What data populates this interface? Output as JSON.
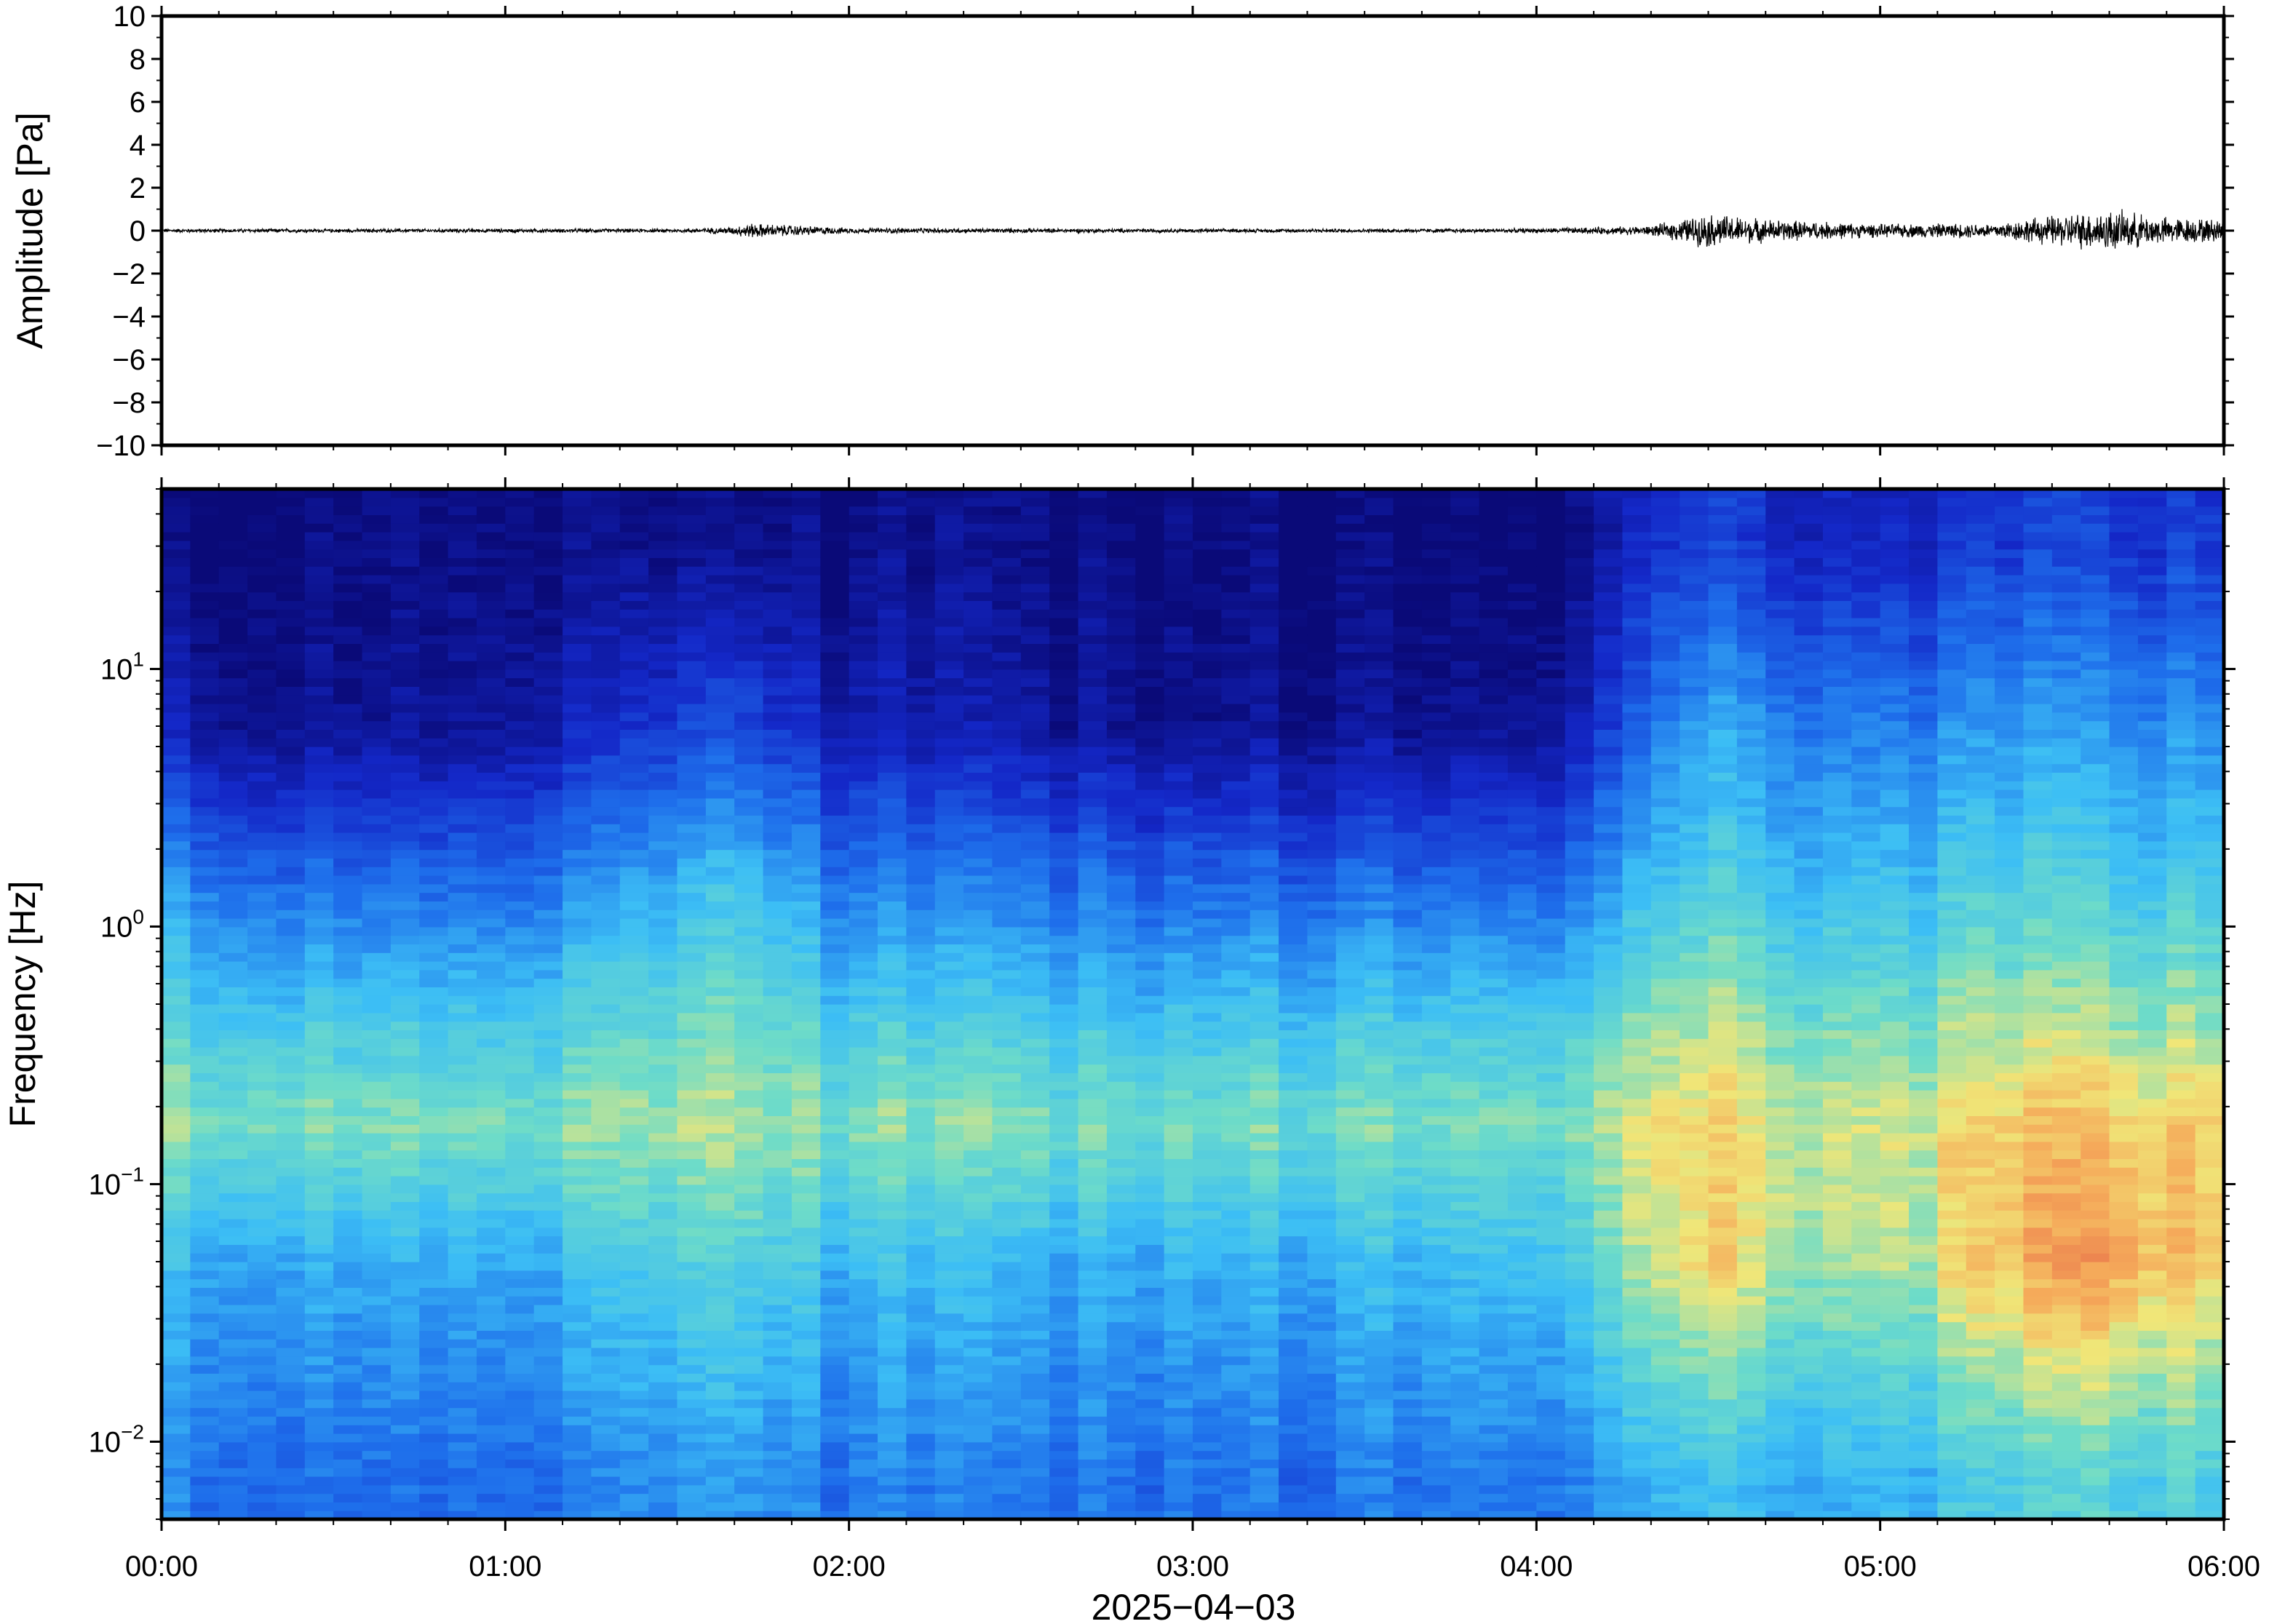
{
  "chart_data": [
    {
      "type": "line",
      "panel": "waveform",
      "title": "",
      "xlabel": "",
      "ylabel": "Amplitude [Pa]",
      "ylim": [
        -10,
        10
      ],
      "y_ticks": [
        {
          "value": 10,
          "label": "10"
        },
        {
          "value": 8,
          "label": "8"
        },
        {
          "value": 6,
          "label": "6"
        },
        {
          "value": 4,
          "label": "4"
        },
        {
          "value": 2,
          "label": "2"
        },
        {
          "value": 0,
          "label": "0"
        },
        {
          "value": -2,
          "label": "−2"
        },
        {
          "value": -4,
          "label": "−4"
        },
        {
          "value": -6,
          "label": "−6"
        },
        {
          "value": -8,
          "label": "−8"
        },
        {
          "value": -10,
          "label": "−10"
        }
      ],
      "xlim": [
        "2025-04-03T00:00",
        "2025-04-03T06:00"
      ],
      "grid": false,
      "series": [
        {
          "x": [
            "00:00",
            "00:30",
            "01:00",
            "01:30",
            "01:40",
            "01:42",
            "02:00",
            "02:30",
            "03:00",
            "03:30",
            "04:00",
            "04:20",
            "04:30",
            "04:40",
            "05:00",
            "05:20",
            "05:30",
            "05:40",
            "05:50",
            "06:00"
          ],
          "y_envelope": [
            0.1,
            0.1,
            0.1,
            0.1,
            0.2,
            0.4,
            0.15,
            0.12,
            0.1,
            0.1,
            0.12,
            0.25,
            0.9,
            0.6,
            0.35,
            0.4,
            0.8,
            1.1,
            0.7,
            0.6
          ]
        }
      ]
    },
    {
      "type": "heatmap",
      "panel": "spectrogram",
      "title": "",
      "xlabel": "2025−04−03",
      "ylabel": "Frequency [Hz]",
      "y_scale": "log",
      "ylim": [
        0.005,
        50
      ],
      "y_ticks": [
        {
          "value": 0.01,
          "base": "10",
          "exp": "−2"
        },
        {
          "value": 0.1,
          "base": "10",
          "exp": "−1"
        },
        {
          "value": 1,
          "base": "10",
          "exp": "0"
        },
        {
          "value": 10,
          "base": "10",
          "exp": "1"
        }
      ],
      "x_ticks": [
        "00:00",
        "01:00",
        "02:00",
        "03:00",
        "04:00",
        "05:00",
        "06:00"
      ],
      "xlim": [
        "2025-04-03T00:00",
        "2025-04-03T06:00"
      ],
      "colormap": "jet",
      "colors": {
        "low": "#0a0a7a",
        "mid_low": "#1f6fe8",
        "mid": "#5fd6f0",
        "mid_high": "#f0e678",
        "high": "#e8504a"
      },
      "power_levels_by_time": [
        {
          "time": "00:00",
          "profile": [
            0.35,
            0.45,
            0.62,
            0.55,
            0.38,
            0.12,
            0.02
          ]
        },
        {
          "time": "00:20",
          "profile": [
            0.3,
            0.42,
            0.6,
            0.5,
            0.3,
            0.05,
            0.01
          ]
        },
        {
          "time": "01:00",
          "profile": [
            0.28,
            0.4,
            0.58,
            0.48,
            0.28,
            0.05,
            0.01
          ]
        },
        {
          "time": "01:40",
          "profile": [
            0.4,
            0.55,
            0.66,
            0.6,
            0.48,
            0.25,
            0.05
          ]
        },
        {
          "time": "02:00",
          "profile": [
            0.32,
            0.44,
            0.6,
            0.5,
            0.32,
            0.1,
            0.02
          ]
        },
        {
          "time": "03:00",
          "profile": [
            0.3,
            0.42,
            0.58,
            0.48,
            0.28,
            0.04,
            0.01
          ]
        },
        {
          "time": "04:00",
          "profile": [
            0.34,
            0.48,
            0.6,
            0.52,
            0.3,
            0.06,
            0.01
          ]
        },
        {
          "time": "04:30",
          "profile": [
            0.45,
            0.72,
            0.72,
            0.64,
            0.5,
            0.4,
            0.2
          ]
        },
        {
          "time": "05:00",
          "profile": [
            0.42,
            0.62,
            0.66,
            0.58,
            0.45,
            0.32,
            0.12
          ]
        },
        {
          "time": "05:40",
          "profile": [
            0.55,
            0.85,
            0.78,
            0.66,
            0.52,
            0.4,
            0.22
          ]
        },
        {
          "time": "06:00",
          "profile": [
            0.48,
            0.7,
            0.7,
            0.6,
            0.46,
            0.34,
            0.16
          ]
        }
      ],
      "profile_frequencies_hz": [
        0.007,
        0.05,
        0.17,
        0.4,
        1.5,
        6,
        30
      ]
    }
  ]
}
